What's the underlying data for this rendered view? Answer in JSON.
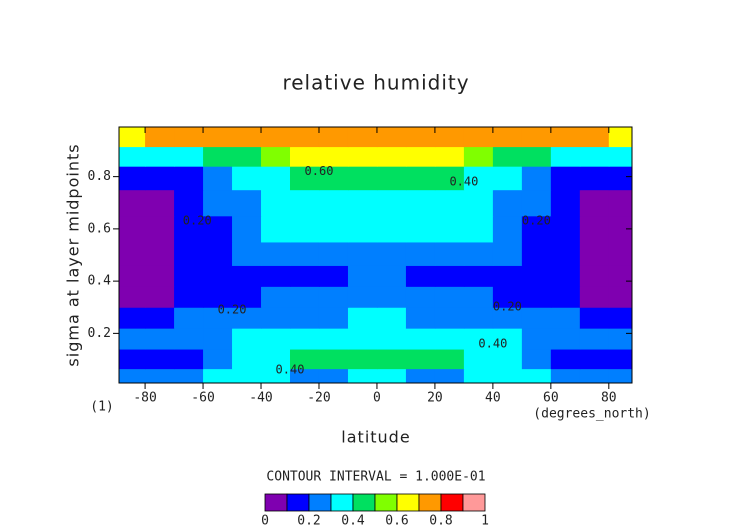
{
  "chart_data": {
    "type": "contour",
    "title": "relative humidity",
    "x_label": "latitude",
    "y_label": "sigma at layer midpoints",
    "x_units": "(degrees_north)",
    "corner_label": "(1)",
    "contour_interval_text": "CONTOUR INTERVAL = 1.000E-01",
    "xlim": [
      -89,
      88
    ],
    "ylim": [
      0.01,
      0.99
    ],
    "xticks": [
      -80,
      -60,
      -40,
      -20,
      0,
      20,
      40,
      60,
      80
    ],
    "yticks": [
      0.2,
      0.4,
      0.6,
      0.8
    ],
    "x": [
      -85,
      -75,
      -65,
      -55,
      -45,
      -35,
      -25,
      -15,
      -5,
      5,
      15,
      25,
      35,
      45,
      55,
      65,
      75,
      85
    ],
    "y": [
      0.03,
      0.1,
      0.18,
      0.26,
      0.34,
      0.42,
      0.5,
      0.6,
      0.7,
      0.8,
      0.88,
      0.95
    ],
    "z": [
      [
        0.22,
        0.25,
        0.28,
        0.3,
        0.32,
        0.3,
        0.28,
        0.25,
        0.3,
        0.3,
        0.25,
        0.28,
        0.3,
        0.32,
        0.3,
        0.28,
        0.25,
        0.22
      ],
      [
        0.1,
        0.12,
        0.15,
        0.2,
        0.3,
        0.38,
        0.42,
        0.45,
        0.46,
        0.46,
        0.45,
        0.42,
        0.38,
        0.3,
        0.2,
        0.15,
        0.12,
        0.1
      ],
      [
        0.2,
        0.22,
        0.25,
        0.27,
        0.3,
        0.33,
        0.35,
        0.37,
        0.38,
        0.38,
        0.37,
        0.35,
        0.33,
        0.3,
        0.27,
        0.25,
        0.22,
        0.2
      ],
      [
        0.12,
        0.18,
        0.2,
        0.22,
        0.23,
        0.25,
        0.27,
        0.29,
        0.3,
        0.3,
        0.29,
        0.27,
        0.25,
        0.23,
        0.22,
        0.2,
        0.18,
        0.12
      ],
      [
        0.07,
        0.08,
        0.12,
        0.15,
        0.18,
        0.2,
        0.22,
        0.25,
        0.26,
        0.26,
        0.25,
        0.22,
        0.2,
        0.18,
        0.15,
        0.12,
        0.08,
        0.07
      ],
      [
        0.05,
        0.06,
        0.1,
        0.12,
        0.13,
        0.14,
        0.15,
        0.18,
        0.22,
        0.22,
        0.18,
        0.15,
        0.14,
        0.13,
        0.12,
        0.1,
        0.06,
        0.05
      ],
      [
        0.05,
        0.08,
        0.12,
        0.18,
        0.2,
        0.22,
        0.25,
        0.27,
        0.28,
        0.28,
        0.27,
        0.25,
        0.22,
        0.2,
        0.18,
        0.12,
        0.08,
        0.05
      ],
      [
        0.05,
        0.08,
        0.12,
        0.15,
        0.25,
        0.3,
        0.32,
        0.33,
        0.33,
        0.33,
        0.33,
        0.32,
        0.3,
        0.25,
        0.15,
        0.12,
        0.08,
        0.05
      ],
      [
        0.06,
        0.08,
        0.15,
        0.22,
        0.28,
        0.33,
        0.35,
        0.36,
        0.36,
        0.36,
        0.36,
        0.35,
        0.33,
        0.28,
        0.22,
        0.15,
        0.08,
        0.06
      ],
      [
        0.14,
        0.15,
        0.18,
        0.25,
        0.3,
        0.35,
        0.4,
        0.44,
        0.45,
        0.45,
        0.44,
        0.4,
        0.35,
        0.3,
        0.25,
        0.18,
        0.15,
        0.14
      ],
      [
        0.32,
        0.3,
        0.3,
        0.4,
        0.48,
        0.55,
        0.6,
        0.62,
        0.62,
        0.62,
        0.62,
        0.6,
        0.55,
        0.48,
        0.4,
        0.3,
        0.3,
        0.32
      ],
      [
        0.68,
        0.7,
        0.72,
        0.73,
        0.74,
        0.75,
        0.75,
        0.76,
        0.76,
        0.76,
        0.76,
        0.75,
        0.75,
        0.74,
        0.73,
        0.72,
        0.7,
        0.68
      ]
    ],
    "levels": [
      0,
      0.1,
      0.2,
      0.3,
      0.4,
      0.5,
      0.6,
      0.7,
      0.8,
      0.9,
      1
    ],
    "level_colors": [
      "#7f00b0",
      "#0000ff",
      "#007fff",
      "#00ffff",
      "#00e060",
      "#80ff00",
      "#ffff00",
      "#ff9900",
      "#ff0000",
      "#ff9999"
    ],
    "colorbar_ticks": [
      0,
      0.2,
      0.4,
      0.6,
      0.8,
      1
    ],
    "contour_labels": [
      {
        "text": "0.60",
        "x": -20,
        "y": 0.82
      },
      {
        "text": "0.40",
        "x": 30,
        "y": 0.78
      },
      {
        "text": "0.20",
        "x": -62,
        "y": 0.63
      },
      {
        "text": "0.20",
        "x": 55,
        "y": 0.63
      },
      {
        "text": "0.20",
        "x": -50,
        "y": 0.29
      },
      {
        "text": "0.20",
        "x": 45,
        "y": 0.3
      },
      {
        "text": "0.40",
        "x": 40,
        "y": 0.16
      },
      {
        "text": "0.40",
        "x": -30,
        "y": 0.06
      }
    ]
  }
}
